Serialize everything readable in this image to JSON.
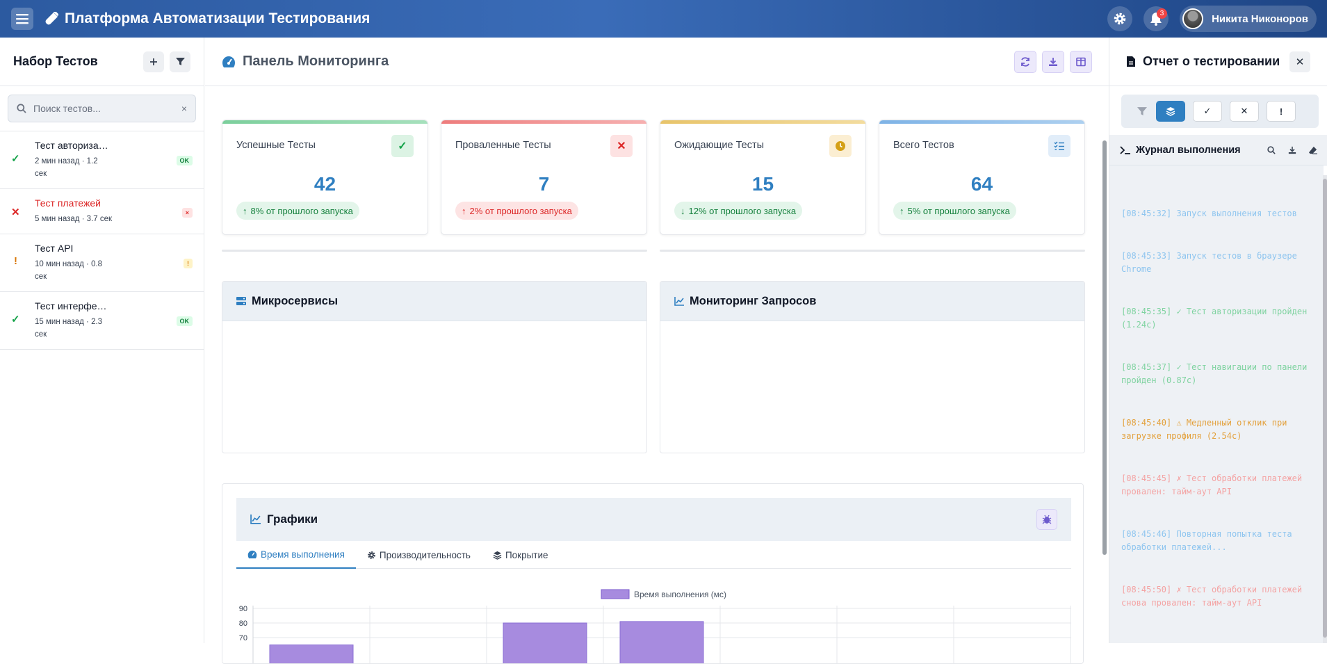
{
  "app": {
    "title": "Платформа Автоматизации Тестирования",
    "notifications": "3",
    "user_name": "Никита Никоноров"
  },
  "sidebar": {
    "title": "Набор Тестов",
    "search_placeholder": "Поиск тестов...",
    "clear": "×",
    "tests": [
      {
        "name": "Тест авторизации",
        "meta": "2 мин назад · 1.2 сек",
        "status": "OK",
        "icon": "✓",
        "color": "#16a34a"
      },
      {
        "name": "Тест платежей",
        "meta": "5 мин назад · 3.7 сек",
        "status": "×",
        "icon": "✕",
        "color": "#dc2626"
      },
      {
        "name": "Тест API",
        "meta": "10 мин назад · 0.8 сек",
        "status": "!",
        "icon": "!",
        "color": "#d97706"
      },
      {
        "name": "Тест интерфейса",
        "meta": "15 мин назад · 2.3 сек",
        "status": "OK",
        "icon": "✓",
        "color": "#16a34a"
      }
    ]
  },
  "main": {
    "title": "Панель Мониторинга",
    "stats": [
      {
        "label": "Успешные Тесты",
        "value": "42",
        "change": "8% от прошлого запуска",
        "direction": "up",
        "color": "#16a34a"
      },
      {
        "label": "Проваленные Тесты",
        "value": "7",
        "change": "2% от прошлого запуска",
        "direction": "up",
        "color": "#dc2626"
      },
      {
        "label": "Ожидающие Тесты",
        "value": "15",
        "change": "12% от прошлого запуска",
        "direction": "down",
        "color": "#d4a017"
      },
      {
        "label": "Всего Тестов",
        "value": "64",
        "change": "5% от прошлого запуска",
        "direction": "up",
        "color": "#2f7fc1"
      }
    ],
    "panels": {
      "microservices": "Микросервисы",
      "requests": "Мониторинг Запросов"
    },
    "charts": {
      "title": "Графики",
      "tabs": [
        "Время выполнения",
        "Производительность",
        "Покрытие"
      ],
      "active_tab": "Время выполнения"
    }
  },
  "chart_data": {
    "type": "bar",
    "legend": "Время выполнения (мс)",
    "y_ticks": [
      90,
      80,
      70
    ],
    "ylim": [
      0,
      90
    ],
    "values": [
      65,
      80,
      81
    ],
    "bar_color": "#a78bdf"
  },
  "report": {
    "title": "Отчет о тестировании",
    "log_title": "Журнал выполнения",
    "log": [
      {
        "text": "[08:45:32] Запуск выполнения тестов",
        "color": "#8ec5ef"
      },
      {
        "text": "[08:45:33] Запуск тестов в браузере Chrome",
        "color": "#8ec5ef"
      },
      {
        "text": "[08:45:35] ✓ Тест авторизации пройден (1.24с)",
        "color": "#7fd3a0"
      },
      {
        "text": "[08:45:37] ✓ Тест навигации по панели пройден (0.87с)",
        "color": "#7fd3a0"
      },
      {
        "text": "[08:45:40] ⚠ Медленный отклик при загрузке профиля (2.54с)",
        "color": "#e3a03a"
      },
      {
        "text": "[08:45:45] ✗ Тест обработки платежей провален: тайм-аут API",
        "color": "#f4a3a3"
      },
      {
        "text": "[08:45:46] Повторная попытка теста обработки платежей...",
        "color": "#8ec5ef"
      },
      {
        "text": "[08:45:50] ✗ Тест обработки платежей снова провален: тайм-аут API",
        "color": "#f4a3a3"
      }
    ]
  }
}
